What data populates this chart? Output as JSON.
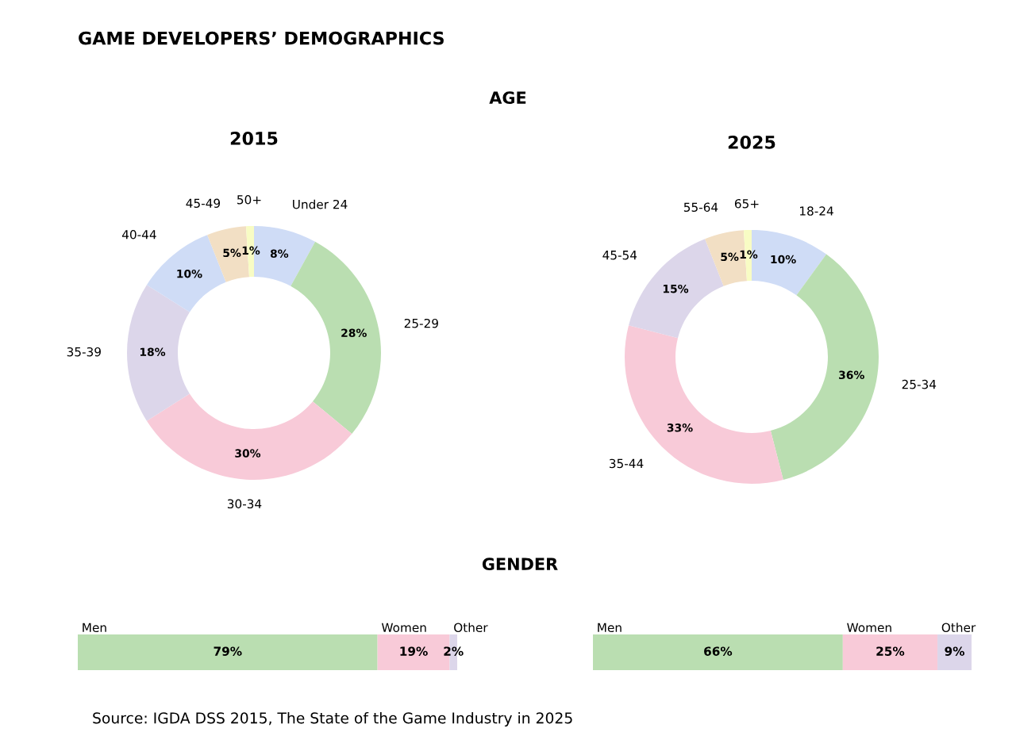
{
  "chart_data": [
    {
      "type": "other",
      "title": "GAME DEVELOPERS’ DEMOGRAPHICS",
      "annotations": [
        "AGE",
        "GENDER",
        "Source: IGDA DSS 2015, The State of the Game Industry in 2025"
      ]
    },
    {
      "type": "donut",
      "title": "2015",
      "categories": [
        "Under 24",
        "25-29",
        "30-34",
        "35-39",
        "40-44",
        "45-49",
        "50+"
      ],
      "values": [
        8,
        28,
        30,
        18,
        10,
        5,
        1
      ],
      "colors": [
        "#cfdcf6",
        "#badeb1",
        "#f8cad8",
        "#dcd6ea",
        "#cfdcf6",
        "#f2dfc4",
        "#f8fcc4"
      ],
      "value_labels": [
        "8%",
        "28%",
        "30%",
        "18%",
        "10%",
        "5%",
        "1%"
      ]
    },
    {
      "type": "donut",
      "title": "2025",
      "categories": [
        "18-24",
        "25-34",
        "35-44",
        "45-54",
        "55-64",
        "65+"
      ],
      "values": [
        10,
        36,
        33,
        15,
        5,
        1
      ],
      "colors": [
        "#cfdcf6",
        "#badeb1",
        "#f8cad8",
        "#dcd6ea",
        "#f2dfc4",
        "#f8fcc4"
      ],
      "value_labels": [
        "10%",
        "36%",
        "33%",
        "15%",
        "5%",
        "1%"
      ]
    },
    {
      "type": "bar",
      "orientation": "horizontal",
      "stacked": true,
      "categories": [
        null
      ],
      "xlim": [
        0,
        100
      ],
      "series": [
        {
          "name": "Men",
          "color": "#badeb1",
          "values": [
            79
          ],
          "value_labels": [
            "79%"
          ]
        },
        {
          "name": "Women",
          "color": "#f8cad8",
          "values": [
            19
          ],
          "value_labels": [
            "19%"
          ]
        },
        {
          "name": "Other",
          "color": "#dcd6ea",
          "values": [
            2
          ],
          "value_labels": [
            "2%"
          ]
        }
      ]
    },
    {
      "type": "bar",
      "orientation": "horizontal",
      "stacked": true,
      "categories": [
        null
      ],
      "xlim": [
        0,
        100
      ],
      "series": [
        {
          "name": "Men",
          "color": "#badeb1",
          "values": [
            66
          ],
          "value_labels": [
            "66%"
          ]
        },
        {
          "name": "Women",
          "color": "#f8cad8",
          "values": [
            25
          ],
          "value_labels": [
            "25%"
          ]
        },
        {
          "name": "Other",
          "color": "#dcd6ea",
          "values": [
            9
          ],
          "value_labels": [
            "9%"
          ]
        }
      ]
    }
  ]
}
